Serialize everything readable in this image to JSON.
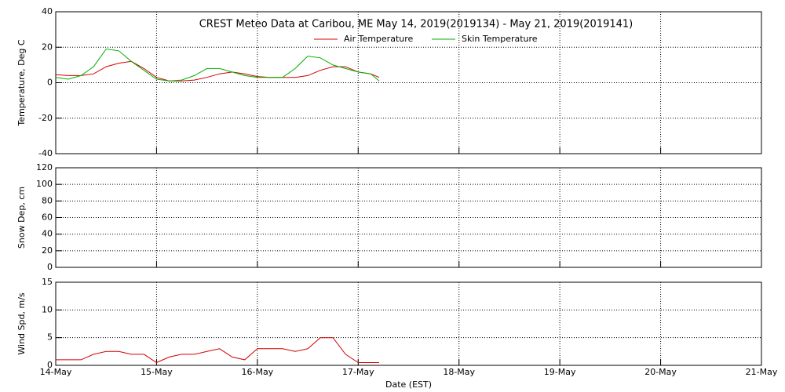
{
  "chart_data": [
    {
      "type": "line",
      "title": "CREST Meteo Data at Caribou, ME   May 14, 2019(2019134) - May 21, 2019(2019141)",
      "ylabel": "Temperature, Deg C",
      "ylim": [
        -40,
        40
      ],
      "yticks": [
        -40,
        -20,
        0,
        20,
        40
      ],
      "xlim": [
        "2019-05-14",
        "2019-05-21"
      ],
      "xticks": [
        "2019-05-14",
        "2019-05-15",
        "2019-05-16",
        "2019-05-17",
        "2019-05-18",
        "2019-05-19",
        "2019-05-20",
        "2019-05-21"
      ],
      "grid": true,
      "legend": "top",
      "x": [
        "2019-05-14T00:00",
        "2019-05-14T03:00",
        "2019-05-14T06:00",
        "2019-05-14T09:00",
        "2019-05-14T12:00",
        "2019-05-14T15:00",
        "2019-05-14T18:00",
        "2019-05-14T21:00",
        "2019-05-15T00:00",
        "2019-05-15T03:00",
        "2019-05-15T06:00",
        "2019-05-15T09:00",
        "2019-05-15T12:00",
        "2019-05-15T15:00",
        "2019-05-15T18:00",
        "2019-05-15T21:00",
        "2019-05-16T00:00",
        "2019-05-16T03:00",
        "2019-05-16T06:00",
        "2019-05-16T09:00",
        "2019-05-16T12:00",
        "2019-05-16T15:00",
        "2019-05-16T18:00",
        "2019-05-16T21:00",
        "2019-05-17T00:00",
        "2019-05-17T03:00",
        "2019-05-17T05:00"
      ],
      "series": [
        {
          "name": "Air Temperature",
          "color": "#d00000",
          "values": [
            4.5,
            4,
            4,
            5,
            9,
            11,
            12,
            8,
            3,
            1,
            1,
            1.5,
            3,
            5,
            6,
            5,
            3.5,
            3,
            3,
            3,
            4,
            7,
            9,
            9,
            6,
            5,
            3
          ]
        },
        {
          "name": "Skin Temperature",
          "color": "#00b000",
          "values": [
            3,
            2,
            4,
            9,
            19,
            18,
            12,
            7,
            2,
            1,
            1.5,
            4,
            8,
            8,
            6,
            4,
            3,
            3,
            3,
            8,
            15,
            14,
            10,
            8,
            6,
            5,
            1
          ]
        }
      ]
    },
    {
      "type": "line",
      "ylabel": "Snow Dep, cm",
      "ylim": [
        0,
        120
      ],
      "yticks": [
        0,
        20,
        40,
        60,
        80,
        100,
        120
      ],
      "xlim": [
        "2019-05-14",
        "2019-05-21"
      ],
      "xticks": [
        "2019-05-14",
        "2019-05-15",
        "2019-05-16",
        "2019-05-17",
        "2019-05-18",
        "2019-05-19",
        "2019-05-20",
        "2019-05-21"
      ],
      "grid": true,
      "x": [],
      "series": []
    },
    {
      "type": "line",
      "ylabel": "Wind Spd, m/s",
      "xlabel": "Date (EST)",
      "ylim": [
        0,
        15
      ],
      "yticks": [
        0,
        5,
        10,
        15
      ],
      "xlim": [
        "2019-05-14",
        "2019-05-21"
      ],
      "xticks": [
        {
          "value": "2019-05-14",
          "label": "14-May"
        },
        {
          "value": "2019-05-15",
          "label": "15-May"
        },
        {
          "value": "2019-05-16",
          "label": "16-May"
        },
        {
          "value": "2019-05-17",
          "label": "17-May"
        },
        {
          "value": "2019-05-18",
          "label": "18-May"
        },
        {
          "value": "2019-05-19",
          "label": "19-May"
        },
        {
          "value": "2019-05-20",
          "label": "20-May"
        },
        {
          "value": "2019-05-21",
          "label": "21-May"
        }
      ],
      "grid": true,
      "x": [
        "2019-05-14T00:00",
        "2019-05-14T03:00",
        "2019-05-14T06:00",
        "2019-05-14T09:00",
        "2019-05-14T12:00",
        "2019-05-14T15:00",
        "2019-05-14T18:00",
        "2019-05-14T21:00",
        "2019-05-15T00:00",
        "2019-05-15T03:00",
        "2019-05-15T06:00",
        "2019-05-15T09:00",
        "2019-05-15T12:00",
        "2019-05-15T15:00",
        "2019-05-15T18:00",
        "2019-05-15T21:00",
        "2019-05-16T00:00",
        "2019-05-16T03:00",
        "2019-05-16T06:00",
        "2019-05-16T09:00",
        "2019-05-16T12:00",
        "2019-05-16T15:00",
        "2019-05-16T18:00",
        "2019-05-16T21:00",
        "2019-05-17T00:00",
        "2019-05-17T03:00",
        "2019-05-17T05:00"
      ],
      "series": [
        {
          "name": "Wind Speed",
          "color": "#d00000",
          "values": [
            1,
            1,
            1,
            2,
            2.5,
            2.5,
            2,
            2,
            0.5,
            1.5,
            2,
            2,
            2.5,
            3,
            1.5,
            1,
            3,
            3,
            3,
            2.5,
            3,
            5,
            5,
            2,
            0.5,
            0.5,
            0.5
          ]
        }
      ]
    }
  ]
}
